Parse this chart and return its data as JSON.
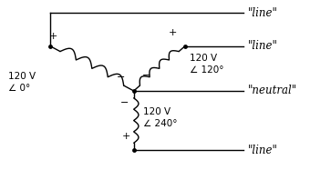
{
  "bg_color": "#ffffff",
  "fig_width": 3.4,
  "fig_height": 1.98,
  "dpi": 100,
  "label_line1": "\"line\"",
  "label_line2": "\"line\"",
  "label_neutral": "\"neutral\"",
  "label_line3": "\"line\"",
  "label_v1": "120 V\n∠ 0°",
  "label_v2": "120 V\n∠ 120°",
  "label_v3": "120 V\n∠ 240°",
  "text_color": "#000000",
  "line_color": "#000000",
  "dot_color": "#000000"
}
